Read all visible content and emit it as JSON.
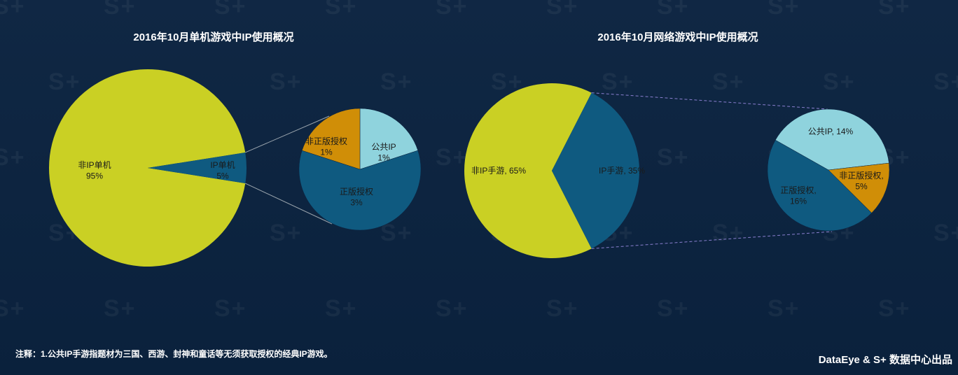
{
  "chart_data": [
    {
      "type": "pie",
      "title": "2016年10月单机游戏中IP使用概况",
      "slices": [
        {
          "label_line1": "非IP单机",
          "label_line2": "95%",
          "value": 95,
          "color": "#cad024"
        },
        {
          "label_line1": "IP单机",
          "label_line2": "5%",
          "value": 5,
          "color": "#0f5a80"
        }
      ],
      "breakdown": [
        {
          "label_line1": "公共IP",
          "label_line2": "1%",
          "value": 1,
          "color": "#8fd3dd"
        },
        {
          "label_line1": "正版授权",
          "label_line2": "3%",
          "value": 3,
          "color": "#0f5a80"
        },
        {
          "label_line1": "非正版授权",
          "label_line2": "1%",
          "value": 1,
          "color": "#d08e07"
        }
      ]
    },
    {
      "type": "pie",
      "title": "2016年10月网络游戏中IP使用概况",
      "slices": [
        {
          "label_line1": "非IP手游, 65%",
          "label_line2": "",
          "value": 65,
          "color": "#cad024"
        },
        {
          "label_line1": "IP手游, 35%",
          "label_line2": "",
          "value": 35,
          "color": "#0f5a80"
        }
      ],
      "breakdown": [
        {
          "label_line1": "公共IP, 14%",
          "label_line2": "",
          "value": 14,
          "color": "#8fd3dd"
        },
        {
          "label_line1": "非正版授权,",
          "label_line2": "5%",
          "value": 5,
          "color": "#d08e07"
        },
        {
          "label_line1": "正版授权,",
          "label_line2": "16%",
          "value": 16,
          "color": "#0f5a80"
        }
      ]
    }
  ],
  "footnote": "注释：1.公共IP手游指题材为三国、西游、封神和童话等无须获取授权的经典IP游戏。",
  "credit": "DataEye & S+ 数据中心出品",
  "watermark_text": "S+"
}
